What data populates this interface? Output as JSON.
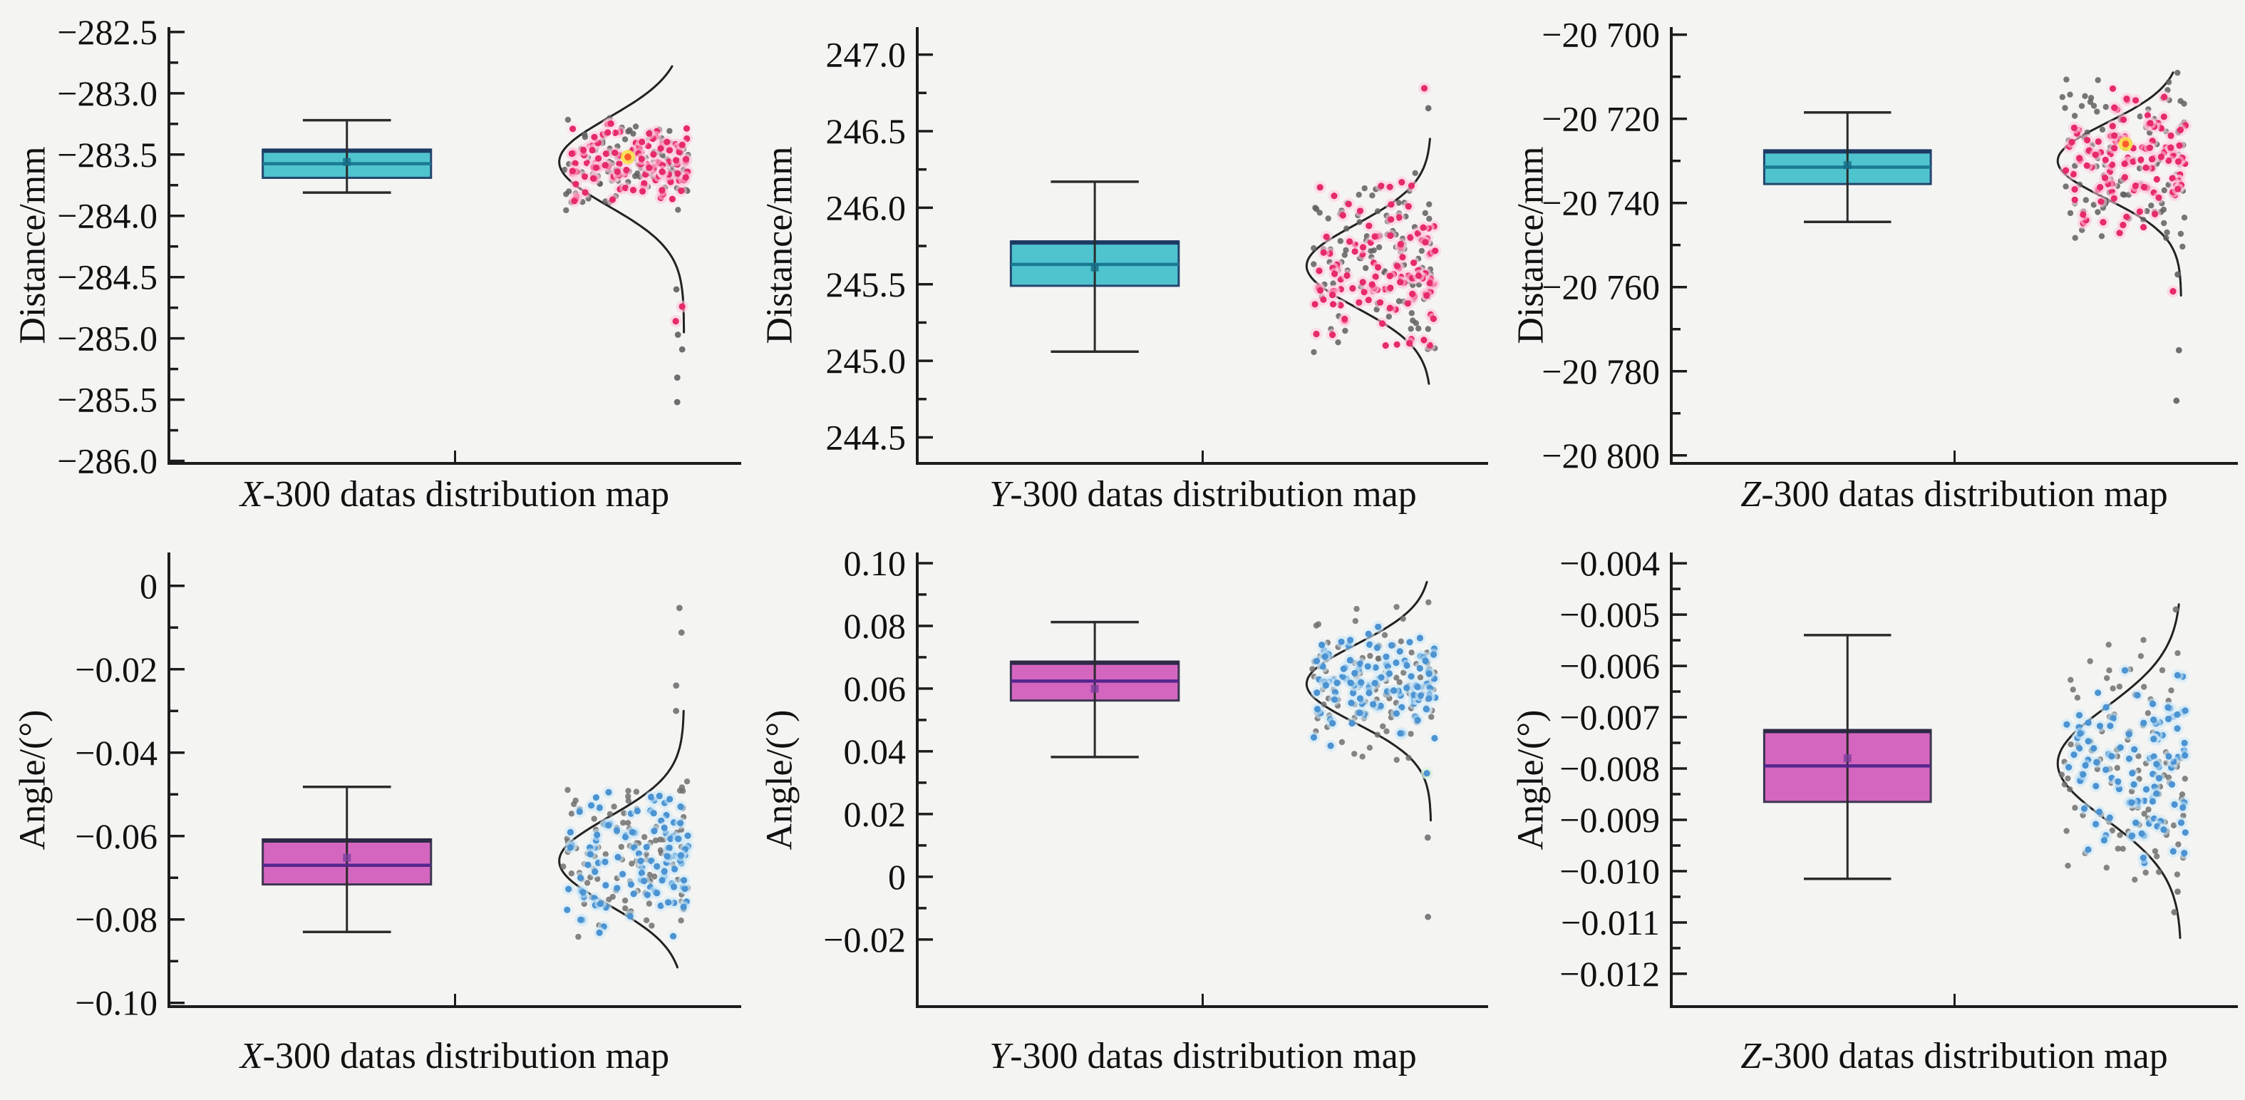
{
  "figure": {
    "background": "#f4f4f2",
    "spine_color": "#1c1c1c",
    "curve_color": "#222222",
    "grid": false,
    "legend": null
  },
  "palettes": {
    "distance": {
      "box_fill": "#4fc4cf",
      "box_edge": "#24456e",
      "box_top": "#1d3a63",
      "median": "#1a7a93",
      "mean": "#176b84",
      "point": "#e62a6b",
      "halo": "#ffc6dc",
      "halo_alt": "#ffdfec",
      "gray": "#5f5f5f",
      "accent_core": "#ff5a2a",
      "accent_halo": "#f8e24a",
      "green": "#d7f0da"
    },
    "angle": {
      "box_fill": "#d466c0",
      "box_edge": "#3c3550",
      "box_top": "#2c2a45",
      "median": "#55268e",
      "mean": "#7c3f9e",
      "point": "#4b93d2",
      "halo": "#cbe7f8",
      "halo_alt": "#ddeffa",
      "gray": "#707070",
      "accent_core": "#ff5a2a",
      "accent_halo": "#f8e24a",
      "green": "#d7f0da"
    }
  },
  "chart_data": {
    "type": "bar",
    "note": "2x3 grid of box plots with half-violin normal curves and jittered scatter points",
    "panels": [
      {
        "id": "top-left",
        "row": 0,
        "col": 0,
        "palette": "distance",
        "title_var": "X",
        "title_rest": "-300 datas distribution map",
        "ylabel": "Distance/mm",
        "ylim": [
          -286.02,
          -282.46
        ],
        "yticks": [
          {
            "v": -282.5,
            "t": "−282.5"
          },
          {
            "v": -283.0,
            "t": "−283.0"
          },
          {
            "v": -283.5,
            "t": "−283.5"
          },
          {
            "v": -284.0,
            "t": "−284.0"
          },
          {
            "v": -284.5,
            "t": "−284.5"
          },
          {
            "v": -285.0,
            "t": "−285.0"
          },
          {
            "v": -285.5,
            "t": "−285.5"
          },
          {
            "v": -286.0,
            "t": "−286.0"
          }
        ],
        "box": {
          "whisker_high": -283.22,
          "q3": -283.46,
          "median": -283.575,
          "mean": -283.56,
          "q1": -283.69,
          "whisker_low": -283.81
        },
        "points": {
          "n": 115,
          "mean": -283.56,
          "sd": 0.155,
          "gray_sd": 0.19,
          "seed": 101,
          "outliers": [
            {
              "v": -284.6,
              "c": "gray"
            },
            {
              "v": -284.74,
              "c": "point"
            },
            {
              "v": -284.86,
              "c": "point"
            },
            {
              "v": -284.97,
              "c": "gray"
            },
            {
              "v": -285.09,
              "c": "gray"
            },
            {
              "v": -285.32,
              "c": "gray"
            },
            {
              "v": -285.52,
              "c": "gray"
            }
          ],
          "accent": -283.52
        },
        "curve": {
          "mu": -283.56,
          "sigma": 0.36,
          "hi": -282.78,
          "lo": -284.95
        }
      },
      {
        "id": "top-middle",
        "row": 0,
        "col": 1,
        "palette": "distance",
        "title_var": "Y",
        "title_rest": "-300 datas distribution map",
        "ylabel": "Distance/mm",
        "ylim": [
          244.33,
          247.18
        ],
        "yticks": [
          {
            "v": 247.0,
            "t": "247.0"
          },
          {
            "v": 246.5,
            "t": "246.5"
          },
          {
            "v": 246.0,
            "t": "246.0"
          },
          {
            "v": 245.5,
            "t": "245.5"
          },
          {
            "v": 245.0,
            "t": "245.0"
          },
          {
            "v": 244.5,
            "t": "244.5"
          }
        ],
        "box": {
          "whisker_high": 246.17,
          "q3": 245.78,
          "median": 245.63,
          "mean": 245.61,
          "q1": 245.49,
          "whisker_low": 245.06
        },
        "points": {
          "n": 115,
          "mean": 245.62,
          "sd": 0.27,
          "gray_sd": 0.3,
          "seed": 102,
          "outliers": [
            {
              "v": 246.78,
              "c": "point"
            },
            {
              "v": 246.65,
              "c": "gray"
            }
          ],
          "accent": null
        },
        "curve": {
          "mu": 245.62,
          "sigma": 0.27,
          "hi": 246.45,
          "lo": 244.85
        }
      },
      {
        "id": "top-right",
        "row": 0,
        "col": 2,
        "palette": "distance",
        "title_var": "Z",
        "title_rest": "-300 datas distribution map",
        "ylabel": "Distance/mm",
        "ylim": [
          -20801.9,
          -20698.2
        ],
        "yticks": [
          {
            "v": -20700,
            "t": "−20 700"
          },
          {
            "v": -20720,
            "t": "−20 720"
          },
          {
            "v": -20740,
            "t": "−20 740"
          },
          {
            "v": -20760,
            "t": "−20 760"
          },
          {
            "v": -20780,
            "t": "−20 780"
          },
          {
            "v": -20800,
            "t": "−20 800"
          }
        ],
        "box": {
          "whisker_high": -20718.5,
          "q3": -20727.5,
          "median": -20731.5,
          "mean": -20731,
          "q1": -20735.5,
          "whisker_low": -20744.5
        },
        "points": {
          "n": 115,
          "mean": -20730,
          "sd": 8.5,
          "gray_sd": 10,
          "seed": 103,
          "outliers": [
            {
              "v": -20757,
              "c": "gray"
            },
            {
              "v": -20761,
              "c": "point"
            },
            {
              "v": -20775,
              "c": "gray"
            },
            {
              "v": -20787,
              "c": "gray"
            }
          ],
          "accent": -20726
        },
        "curve": {
          "mu": -20730,
          "sigma": 9,
          "hi": -20709,
          "lo": -20762
        }
      },
      {
        "id": "bottom-left",
        "row": 1,
        "col": 0,
        "palette": "angle",
        "title_var": "X",
        "title_rest": "-300 datas distribution map",
        "ylabel": "Angle/(°)",
        "ylim": [
          -0.1009,
          0.008
        ],
        "yticks": [
          {
            "v": 0,
            "t": "0"
          },
          {
            "v": -0.02,
            "t": "−0.02"
          },
          {
            "v": -0.04,
            "t": "−0.04"
          },
          {
            "v": -0.06,
            "t": "−0.06"
          },
          {
            "v": -0.08,
            "t": "−0.08"
          },
          {
            "v": -0.1,
            "t": "−0.10"
          }
        ],
        "box": {
          "whisker_high": -0.0482,
          "q3": -0.0608,
          "median": -0.067,
          "mean": -0.0652,
          "q1": -0.0716,
          "whisker_low": -0.083
        },
        "points": {
          "n": 110,
          "mean": -0.066,
          "sd": 0.0085,
          "gray_sd": 0.01,
          "seed": 104,
          "outliers": [
            {
              "v": -0.0053,
              "c": "gray"
            },
            {
              "v": -0.0112,
              "c": "gray"
            },
            {
              "v": -0.0239,
              "c": "gray"
            },
            {
              "v": -0.03,
              "c": "gray"
            }
          ],
          "accent": null
        },
        "curve": {
          "mu": -0.066,
          "sigma": 0.0105,
          "hi": -0.03,
          "lo": -0.0915
        }
      },
      {
        "id": "bottom-middle",
        "row": 1,
        "col": 1,
        "palette": "angle",
        "title_var": "Y",
        "title_rest": "-300 datas distribution map",
        "ylabel": "Angle/(°)",
        "ylim": [
          -0.0414,
          0.1034
        ],
        "yticks": [
          {
            "v": 0.1,
            "t": "0.10"
          },
          {
            "v": 0.08,
            "t": "0.08"
          },
          {
            "v": 0.06,
            "t": "0.06"
          },
          {
            "v": 0.04,
            "t": "0.04"
          },
          {
            "v": 0.02,
            "t": "0.02"
          },
          {
            "v": 0,
            "t": "0"
          },
          {
            "v": -0.02,
            "t": "−0.02"
          }
        ],
        "box": {
          "whisker_high": 0.0812,
          "q3": 0.0686,
          "median": 0.0624,
          "mean": 0.06,
          "q1": 0.0562,
          "whisker_low": 0.0382
        },
        "points": {
          "n": 110,
          "mean": 0.0615,
          "sd": 0.0105,
          "gray_sd": 0.0125,
          "seed": 105,
          "outliers": [
            {
              "v": 0.0125,
              "c": "gray"
            },
            {
              "v": -0.0128,
              "c": "gray"
            },
            {
              "v": 0.033,
              "c": "green"
            }
          ],
          "accent": null
        },
        "curve": {
          "mu": 0.0615,
          "sigma": 0.0125,
          "hi": 0.094,
          "lo": 0.018
        }
      },
      {
        "id": "bottom-right",
        "row": 1,
        "col": 2,
        "palette": "angle",
        "title_var": "Z",
        "title_rest": "-300 datas distribution map",
        "ylabel": "Angle/(°)",
        "ylim": [
          -0.01264,
          -0.00379
        ],
        "yticks": [
          {
            "v": -0.004,
            "t": "−0.004"
          },
          {
            "v": -0.005,
            "t": "−0.005"
          },
          {
            "v": -0.006,
            "t": "−0.006"
          },
          {
            "v": -0.007,
            "t": "−0.007"
          },
          {
            "v": -0.008,
            "t": "−0.008"
          },
          {
            "v": -0.009,
            "t": "−0.009"
          },
          {
            "v": -0.01,
            "t": "−0.010"
          },
          {
            "v": -0.011,
            "t": "−0.011"
          },
          {
            "v": -0.012,
            "t": "−0.012"
          }
        ],
        "box": {
          "whisker_high": -0.0054,
          "q3": -0.00725,
          "median": -0.00795,
          "mean": -0.0078,
          "q1": -0.00865,
          "whisker_low": -0.01015
        },
        "points": {
          "n": 110,
          "mean": -0.0079,
          "sd": 0.00095,
          "gray_sd": 0.00115,
          "seed": 106,
          "outliers": [
            {
              "v": -0.0049,
              "c": "gray"
            },
            {
              "v": -0.0104,
              "c": "gray"
            },
            {
              "v": -0.0108,
              "c": "gray"
            }
          ],
          "accent": null
        },
        "curve": {
          "mu": -0.0079,
          "sigma": 0.0011,
          "hi": -0.0048,
          "lo": -0.0113
        }
      }
    ]
  }
}
